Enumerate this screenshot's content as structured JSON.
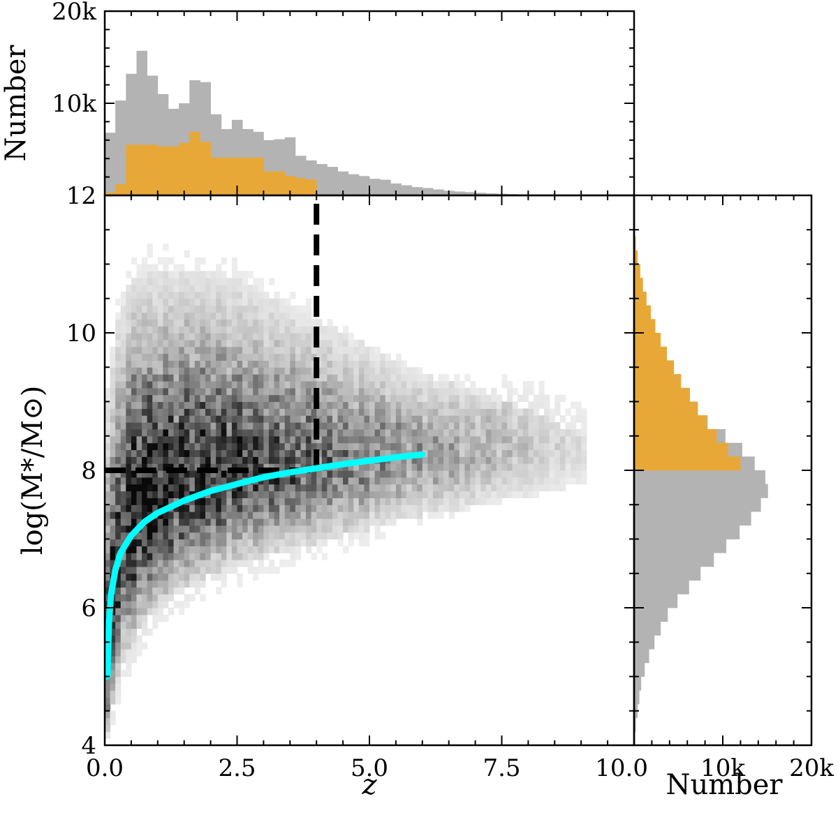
{
  "chart_data": [
    {
      "panel": "main",
      "type": "heatmap",
      "xlabel": "z",
      "ylabel": "log(M*/M⊙)",
      "xlim": [
        0,
        10
      ],
      "ylim": [
        4,
        12
      ],
      "x_ticks": [
        0.0,
        2.5,
        5.0,
        7.5,
        10.0
      ],
      "x_tick_labels": [
        "0.0",
        "2.5",
        "5.0",
        "7.5",
        "10.0"
      ],
      "y_ticks": [
        4,
        6,
        8,
        10,
        12
      ],
      "y_tick_labels": [
        "4",
        "6",
        "8",
        "10",
        "12"
      ],
      "colormap": "Greys",
      "density_profile": {
        "z": [
          0.05,
          0.3,
          0.6,
          1.0,
          1.5,
          2.0,
          2.5,
          3.0,
          3.5,
          4.0,
          4.5,
          5.0,
          5.5,
          6.0,
          6.5,
          7.0,
          7.5,
          8.0,
          8.5,
          9.0
        ],
        "lower_edge": [
          4.0,
          4.9,
          5.4,
          5.8,
          6.1,
          6.3,
          6.45,
          6.55,
          6.65,
          6.75,
          6.85,
          6.95,
          7.05,
          7.15,
          7.2,
          7.3,
          7.35,
          7.4,
          7.5,
          7.6
        ],
        "upper_edge": [
          9.5,
          10.8,
          11.2,
          11.2,
          11.2,
          11.2,
          11.1,
          10.9,
          10.7,
          10.5,
          10.3,
          10.1,
          9.9,
          9.7,
          9.6,
          9.4,
          9.3,
          9.2,
          9.0,
          8.8
        ],
        "peak": [
          5.0,
          6.8,
          7.3,
          7.5,
          7.7,
          7.8,
          7.9,
          7.95,
          8.0,
          8.05,
          8.1,
          8.15,
          8.2,
          8.2,
          8.25,
          8.25,
          8.3,
          8.3,
          8.3,
          8.3
        ]
      },
      "overlays": [
        {
          "kind": "dashed",
          "color": "#000000",
          "x": [
            0,
            4
          ],
          "y": [
            8,
            8
          ]
        },
        {
          "kind": "dashed",
          "color": "#000000",
          "x": [
            4,
            4
          ],
          "y": [
            8,
            12
          ]
        },
        {
          "kind": "curve",
          "color": "#00ffff",
          "x": [
            0.05,
            0.08,
            0.12,
            0.2,
            0.3,
            0.5,
            0.75,
            1.0,
            1.5,
            2.0,
            2.5,
            3.0,
            3.5,
            4.0,
            4.5,
            5.0,
            5.5,
            6.0
          ],
          "y": [
            5.0,
            5.8,
            6.2,
            6.55,
            6.8,
            7.05,
            7.25,
            7.38,
            7.56,
            7.7,
            7.8,
            7.9,
            7.97,
            8.03,
            8.09,
            8.14,
            8.19,
            8.23
          ]
        }
      ]
    },
    {
      "panel": "top-histogram",
      "type": "bar",
      "ylabel": "Number",
      "xlim": [
        0,
        10
      ],
      "ylim": [
        0,
        20000
      ],
      "y_ticks": [
        10000,
        20000
      ],
      "y_tick_labels": [
        "10k",
        "20k"
      ],
      "bin_width": 0.2,
      "series": [
        {
          "color": "#b3b3b3",
          "bins_start": [
            0,
            0.2,
            0.4,
            0.6,
            0.8,
            1.0,
            1.2,
            1.4,
            1.6,
            1.8,
            2.0,
            2.2,
            2.4,
            2.6,
            2.8,
            3.0,
            3.2,
            3.4,
            3.6,
            3.8,
            4.0,
            4.2,
            4.4,
            4.6,
            4.8,
            5.0,
            5.2,
            5.4,
            5.6,
            5.8,
            6.0,
            6.2,
            6.4,
            6.6,
            6.8,
            7.0,
            7.2,
            7.4,
            7.6,
            7.8
          ],
          "values": [
            6800,
            10300,
            13200,
            15700,
            13000,
            11000,
            9400,
            10000,
            12500,
            12300,
            8800,
            7200,
            8200,
            7200,
            6900,
            6000,
            6100,
            6300,
            4300,
            3800,
            3400,
            3100,
            2600,
            2300,
            2100,
            1800,
            1700,
            1300,
            1100,
            900,
            800,
            650,
            500,
            420,
            350,
            280,
            220,
            180,
            140,
            100
          ]
        },
        {
          "color": "#e8a838",
          "bins_start": [
            0,
            0.2,
            0.4,
            0.6,
            0.8,
            1.0,
            1.2,
            1.4,
            1.6,
            1.8,
            2.0,
            2.2,
            2.4,
            2.6,
            2.8,
            3.0,
            3.2,
            3.4,
            3.6,
            3.8
          ],
          "values": [
            300,
            1200,
            5500,
            5500,
            5500,
            5300,
            5300,
            5700,
            6900,
            5800,
            4100,
            4100,
            4100,
            4100,
            4100,
            2600,
            2600,
            2100,
            1900,
            1700
          ]
        }
      ]
    },
    {
      "panel": "right-histogram",
      "type": "bar",
      "orientation": "horizontal",
      "xlabel": "Number",
      "xlim": [
        0,
        20000
      ],
      "x_ticks": [
        0,
        10000,
        20000
      ],
      "x_tick_labels": [
        "0",
        "10k",
        "20k"
      ],
      "ylim": [
        4,
        12
      ],
      "bin_width": 0.2,
      "series": [
        {
          "color": "#b3b3b3",
          "bins_start": [
            4.0,
            4.2,
            4.4,
            4.6,
            4.8,
            5.0,
            5.2,
            5.4,
            5.6,
            5.8,
            6.0,
            6.2,
            6.4,
            6.6,
            6.8,
            7.0,
            7.2,
            7.4,
            7.6,
            7.8,
            8.0,
            8.2,
            8.4,
            8.6,
            8.8,
            9.0
          ],
          "values": [
            100,
            200,
            400,
            600,
            800,
            1200,
            1700,
            2300,
            3000,
            3800,
            4900,
            6200,
            7500,
            9000,
            10400,
            11900,
            13200,
            14300,
            15100,
            14800,
            13600,
            12200,
            10300,
            8300,
            6400,
            4600
          ]
        },
        {
          "color": "#e8a838",
          "bins_start": [
            8.0,
            8.2,
            8.4,
            8.6,
            8.8,
            9.0,
            9.2,
            9.4,
            9.6,
            9.8,
            10.0,
            10.2,
            10.4,
            10.6,
            10.8,
            11.0,
            11.2
          ],
          "values": [
            12000,
            10600,
            9300,
            8200,
            7200,
            6300,
            5300,
            4500,
            3700,
            3000,
            2400,
            1900,
            1400,
            1000,
            700,
            400,
            200
          ]
        }
      ]
    }
  ]
}
